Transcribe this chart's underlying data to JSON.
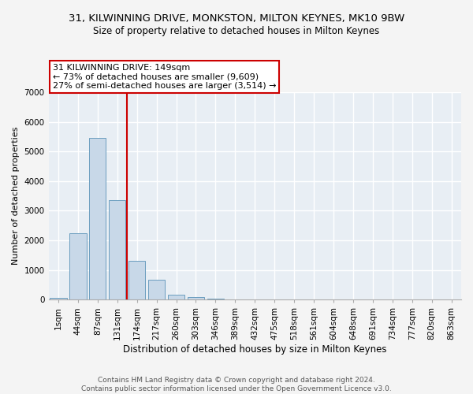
{
  "title_line1": "31, KILWINNING DRIVE, MONKSTON, MILTON KEYNES, MK10 9BW",
  "title_line2": "Size of property relative to detached houses in Milton Keynes",
  "xlabel": "Distribution of detached houses by size in Milton Keynes",
  "ylabel": "Number of detached properties",
  "bar_color": "#c8d8e8",
  "bar_edge_color": "#6b9dbf",
  "annotation_box_color": "#cc0000",
  "annotation_text_line1": "31 KILWINNING DRIVE: 149sqm",
  "annotation_text_line2": "← 73% of detached houses are smaller (9,609)",
  "annotation_text_line3": "27% of semi-detached houses are larger (3,514) →",
  "vline_color": "#cc0000",
  "categories": [
    "1sqm",
    "44sqm",
    "87sqm",
    "131sqm",
    "174sqm",
    "217sqm",
    "260sqm",
    "303sqm",
    "346sqm",
    "389sqm",
    "432sqm",
    "475sqm",
    "518sqm",
    "561sqm",
    "604sqm",
    "648sqm",
    "691sqm",
    "734sqm",
    "777sqm",
    "820sqm",
    "863sqm"
  ],
  "values": [
    70,
    2250,
    5450,
    3350,
    1300,
    680,
    180,
    95,
    30,
    0,
    0,
    0,
    0,
    0,
    0,
    0,
    0,
    0,
    0,
    0,
    0
  ],
  "ylim": [
    0,
    7000
  ],
  "yticks": [
    0,
    1000,
    2000,
    3000,
    4000,
    5000,
    6000,
    7000
  ],
  "vline_pos": 3.5,
  "footer_line1": "Contains HM Land Registry data © Crown copyright and database right 2024.",
  "footer_line2": "Contains public sector information licensed under the Open Government Licence v3.0.",
  "fig_background_color": "#f4f4f4",
  "plot_background_color": "#e8eef4",
  "grid_color": "#ffffff",
  "title_fontsize": 9.5,
  "subtitle_fontsize": 8.5,
  "ylabel_fontsize": 8,
  "xlabel_fontsize": 8.5,
  "tick_fontsize": 7.5,
  "footer_fontsize": 6.5,
  "annotation_fontsize": 8
}
